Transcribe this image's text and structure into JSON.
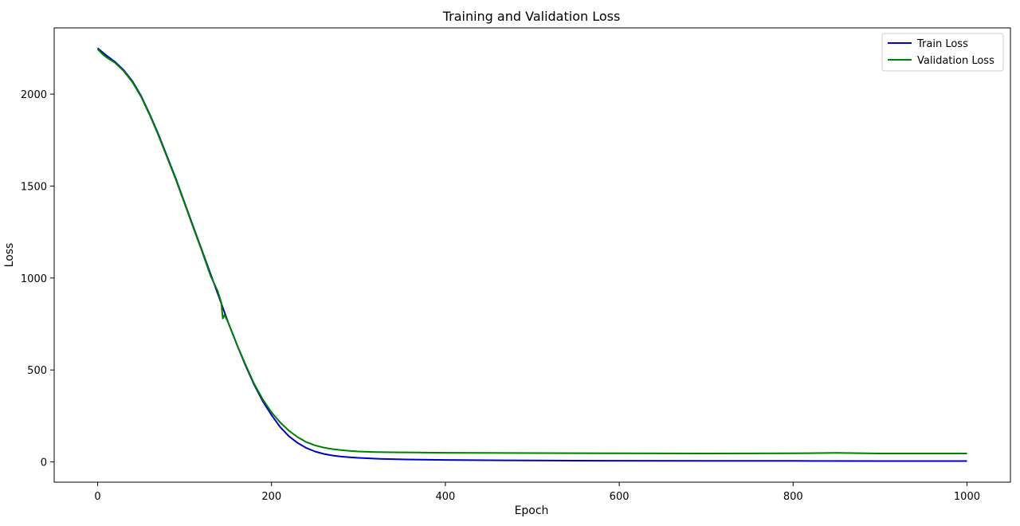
{
  "chart_data": {
    "type": "line",
    "title": "Training and Validation Loss",
    "xlabel": "Epoch",
    "ylabel": "Loss",
    "xlim": [
      -50,
      1050
    ],
    "ylim": [
      -110,
      2360
    ],
    "x_ticks": [
      0,
      200,
      400,
      600,
      800,
      1000
    ],
    "y_ticks": [
      0,
      500,
      1000,
      1500,
      2000
    ],
    "grid": false,
    "legend_position": "top-right",
    "series": [
      {
        "name": "Train Loss",
        "color": "#0000cc",
        "points": [
          [
            0,
            2250
          ],
          [
            10,
            2210
          ],
          [
            20,
            2175
          ],
          [
            30,
            2130
          ],
          [
            40,
            2070
          ],
          [
            50,
            1990
          ],
          [
            60,
            1890
          ],
          [
            70,
            1780
          ],
          [
            80,
            1660
          ],
          [
            90,
            1540
          ],
          [
            100,
            1410
          ],
          [
            110,
            1280
          ],
          [
            120,
            1150
          ],
          [
            130,
            1020
          ],
          [
            140,
            890
          ],
          [
            150,
            760
          ],
          [
            160,
            640
          ],
          [
            170,
            525
          ],
          [
            180,
            420
          ],
          [
            190,
            330
          ],
          [
            200,
            255
          ],
          [
            210,
            190
          ],
          [
            220,
            140
          ],
          [
            230,
            103
          ],
          [
            240,
            76
          ],
          [
            250,
            57
          ],
          [
            260,
            44
          ],
          [
            270,
            35
          ],
          [
            280,
            29
          ],
          [
            290,
            25
          ],
          [
            300,
            22
          ],
          [
            325,
            17
          ],
          [
            350,
            14
          ],
          [
            400,
            11
          ],
          [
            450,
            9
          ],
          [
            500,
            8
          ],
          [
            550,
            7
          ],
          [
            600,
            6.5
          ],
          [
            700,
            6
          ],
          [
            800,
            5.5
          ],
          [
            900,
            5
          ],
          [
            1000,
            5
          ]
        ]
      },
      {
        "name": "Validation Loss",
        "color": "#008000",
        "points": [
          [
            0,
            2245
          ],
          [
            5,
            2220
          ],
          [
            10,
            2200
          ],
          [
            20,
            2170
          ],
          [
            30,
            2125
          ],
          [
            40,
            2065
          ],
          [
            50,
            1985
          ],
          [
            60,
            1885
          ],
          [
            70,
            1775
          ],
          [
            80,
            1655
          ],
          [
            90,
            1535
          ],
          [
            100,
            1405
          ],
          [
            110,
            1275
          ],
          [
            120,
            1145
          ],
          [
            130,
            1010
          ],
          [
            138,
            930
          ],
          [
            142,
            870
          ],
          [
            144,
            780
          ],
          [
            146,
            800
          ],
          [
            150,
            760
          ],
          [
            160,
            640
          ],
          [
            170,
            530
          ],
          [
            180,
            425
          ],
          [
            190,
            340
          ],
          [
            200,
            270
          ],
          [
            210,
            215
          ],
          [
            220,
            170
          ],
          [
            230,
            135
          ],
          [
            240,
            108
          ],
          [
            250,
            90
          ],
          [
            260,
            78
          ],
          [
            270,
            70
          ],
          [
            280,
            64
          ],
          [
            290,
            60
          ],
          [
            300,
            57
          ],
          [
            320,
            54
          ],
          [
            350,
            52
          ],
          [
            400,
            50
          ],
          [
            500,
            48
          ],
          [
            600,
            47
          ],
          [
            700,
            46
          ],
          [
            800,
            47
          ],
          [
            850,
            49
          ],
          [
            900,
            46
          ],
          [
            1000,
            46
          ]
        ]
      }
    ]
  }
}
